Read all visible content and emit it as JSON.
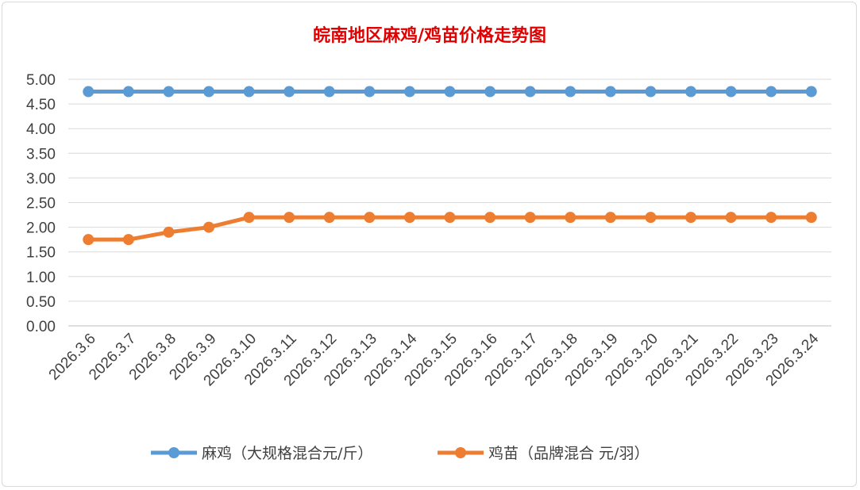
{
  "chart_data": {
    "type": "line",
    "title": "皖南地区麻鸡/鸡苗价格走势图",
    "categories": [
      "2026.3.6",
      "2026.3.7",
      "2026.3.8",
      "2026.3.9",
      "2026.3.10",
      "2026.3.11",
      "2026.3.12",
      "2026.3.13",
      "2026.3.14",
      "2026.3.15",
      "2026.3.16",
      "2026.3.17",
      "2026.3.18",
      "2026.3.19",
      "2026.3.20",
      "2026.3.21",
      "2026.3.22",
      "2026.3.23",
      "2026.3.24"
    ],
    "yticks": [
      "0.00",
      "0.50",
      "1.00",
      "1.50",
      "2.00",
      "2.50",
      "3.00",
      "3.50",
      "4.00",
      "4.50",
      "5.00"
    ],
    "ylim": [
      0,
      5
    ],
    "grid": true,
    "legend_position": "bottom",
    "series": [
      {
        "name": "麻鸡（大规格混合元/斤）",
        "color": "#5b9bd5",
        "values": [
          4.75,
          4.75,
          4.75,
          4.75,
          4.75,
          4.75,
          4.75,
          4.75,
          4.75,
          4.75,
          4.75,
          4.75,
          4.75,
          4.75,
          4.75,
          4.75,
          4.75,
          4.75,
          4.75
        ]
      },
      {
        "name": "鸡苗（品牌混合 元/羽）",
        "color": "#ed7d31",
        "values": [
          1.75,
          1.75,
          1.9,
          2.0,
          2.2,
          2.2,
          2.2,
          2.2,
          2.2,
          2.2,
          2.2,
          2.2,
          2.2,
          2.2,
          2.2,
          2.2,
          2.2,
          2.2,
          2.2
        ]
      }
    ]
  }
}
